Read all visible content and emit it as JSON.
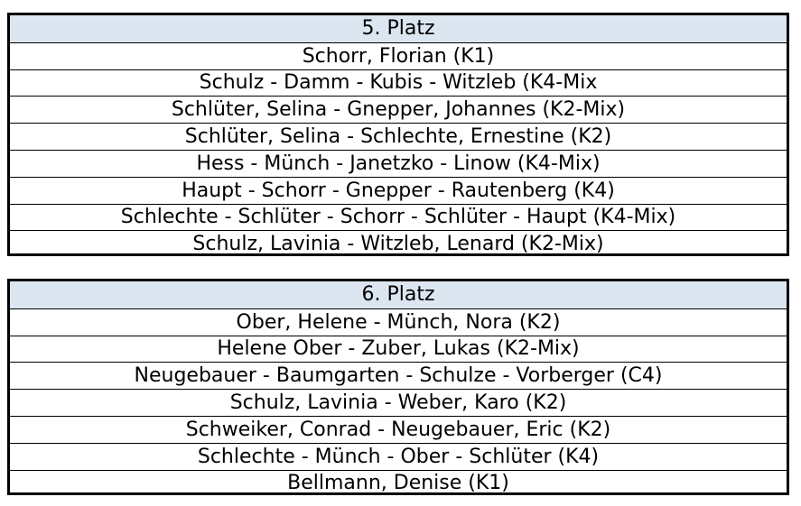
{
  "tables": [
    {
      "header": "5. Platz",
      "rows": [
        "Schorr, Florian (K1)",
        "Schulz - Damm - Kubis - Witzleb (K4-Mix",
        "Schlüter, Selina - Gnepper, Johannes (K2-Mix)",
        "Schlüter, Selina - Schlechte, Ernestine (K2)",
        "Hess - Münch - Janetzko - Linow (K4-Mix)",
        "Haupt - Schorr - Gnepper - Rautenberg (K4)",
        "Schlechte - Schlüter - Schorr - Schlüter - Haupt (K4-Mix)",
        "Schulz, Lavinia - Witzleb, Lenard (K2-Mix)"
      ]
    },
    {
      "header": "6. Platz",
      "rows": [
        "Ober, Helene - Münch, Nora (K2)",
        "Helene Ober - Zuber, Lukas (K2-Mix)",
        "Neugebauer - Baumgarten - Schulze - Vorberger (C4)",
        "Schulz, Lavinia - Weber, Karo (K2)",
        "Schweiker, Conrad - Neugebauer, Eric (K2)",
        "Schlechte - Münch - Ober - Schlüter (K4)",
        "Bellmann, Denise (K1)"
      ]
    }
  ],
  "colors": {
    "header_bg": "#dce6f1",
    "border": "#000000"
  }
}
